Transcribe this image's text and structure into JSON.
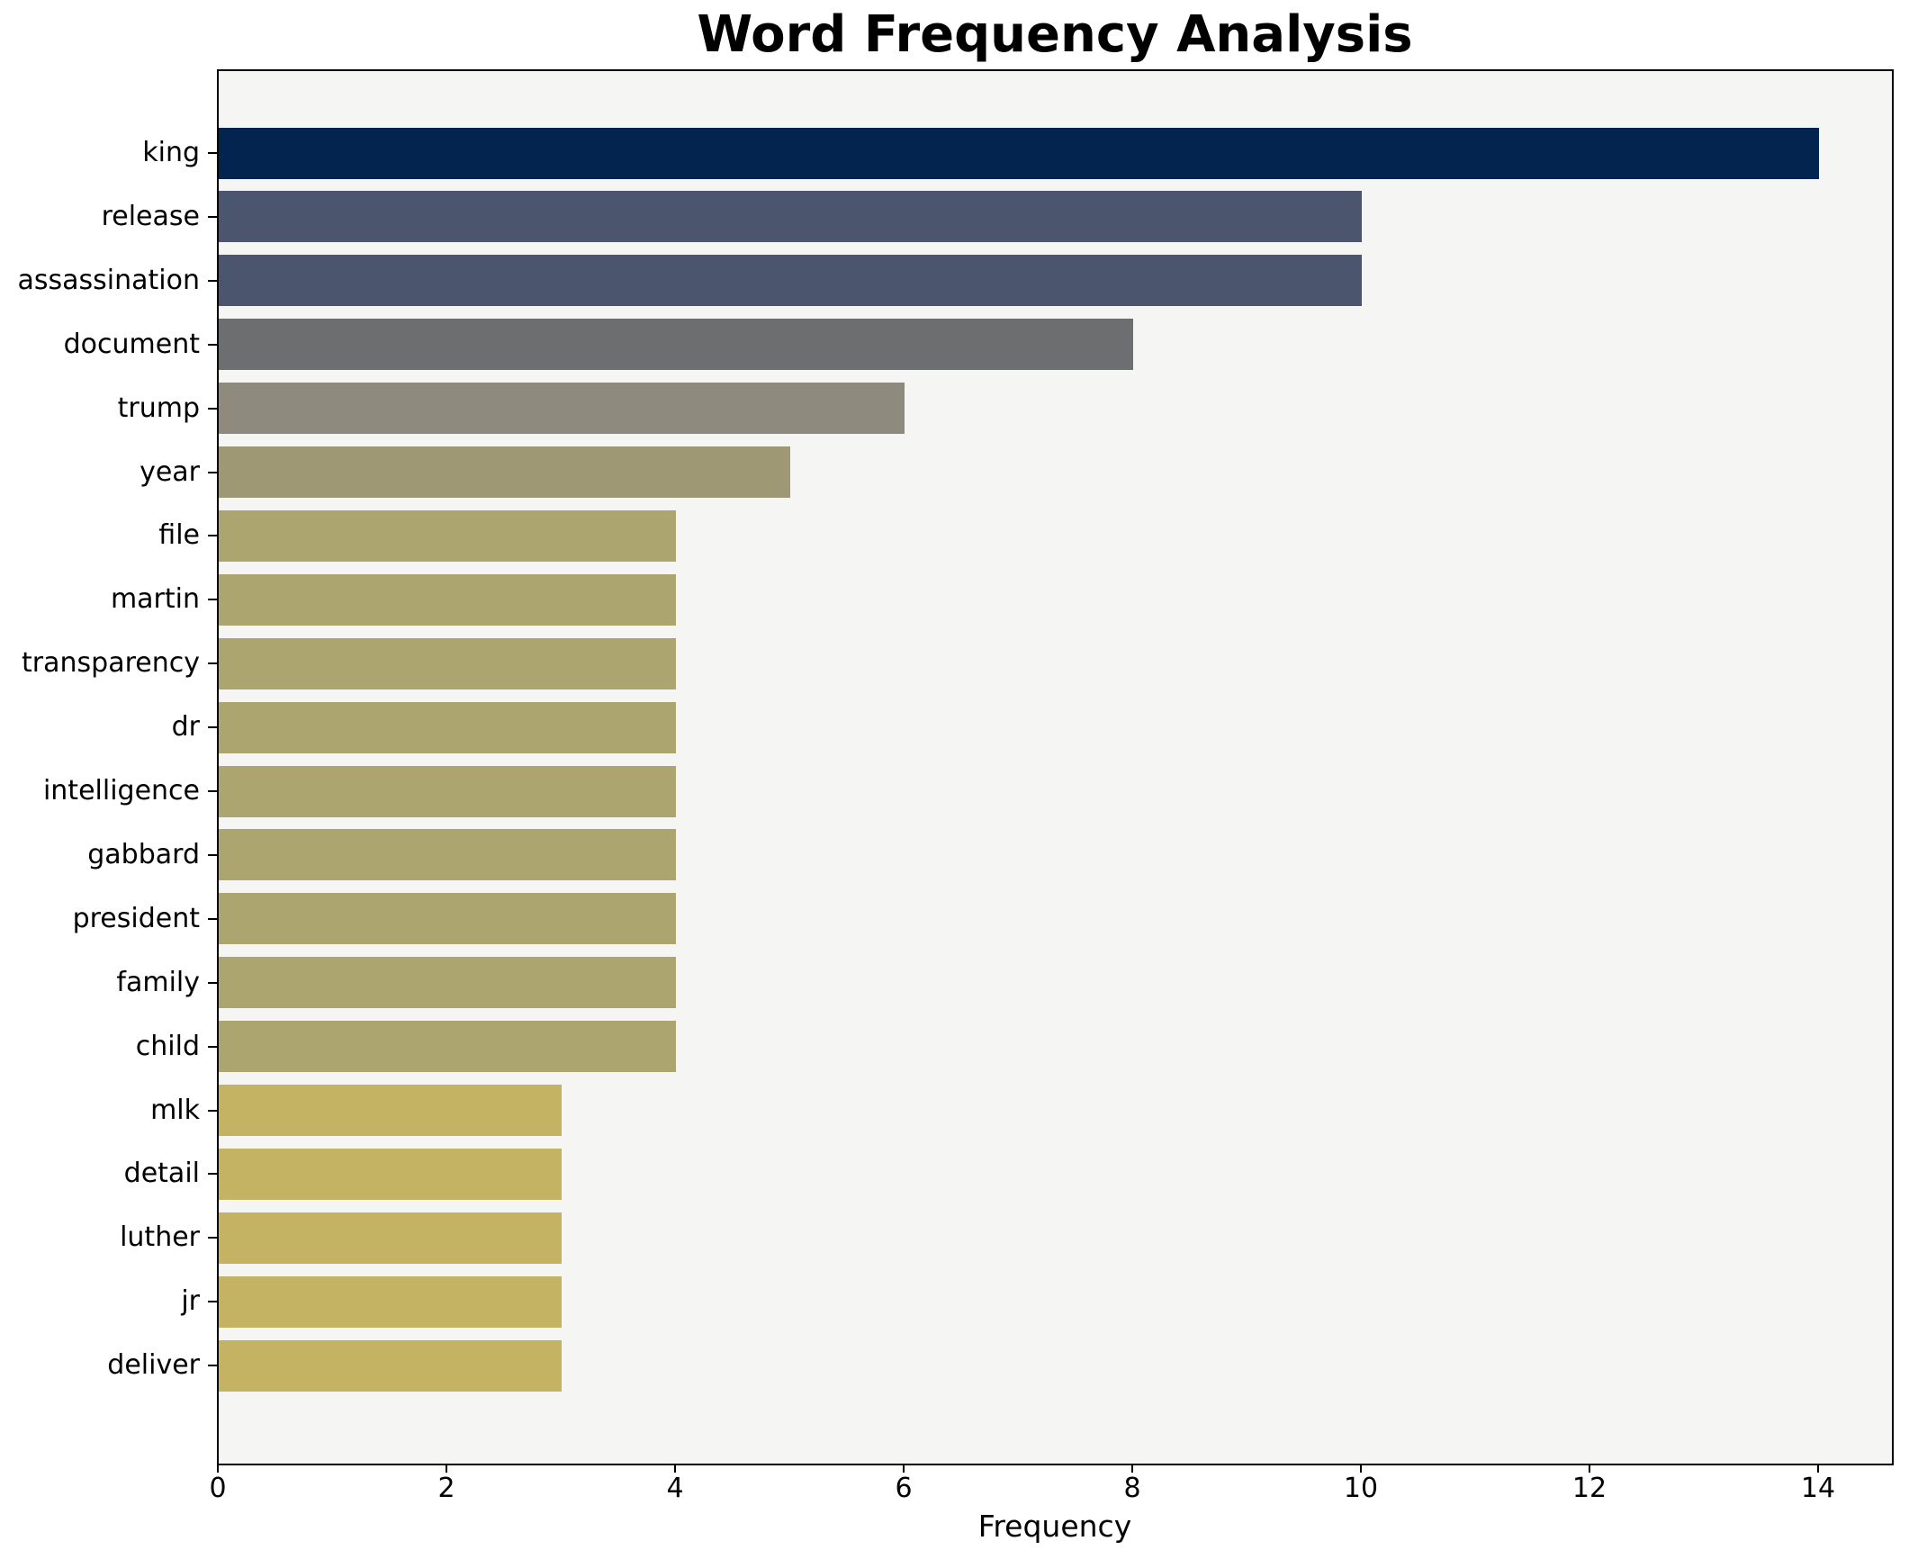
{
  "chart_data": {
    "type": "bar",
    "orientation": "horizontal",
    "title": "Word Frequency Analysis",
    "xlabel": "Frequency",
    "ylabel": "",
    "categories": [
      "king",
      "release",
      "assassination",
      "document",
      "trump",
      "year",
      "file",
      "martin",
      "transparency",
      "dr",
      "intelligence",
      "gabbard",
      "president",
      "family",
      "child",
      "mlk",
      "detail",
      "luther",
      "jr",
      "deliver"
    ],
    "values": [
      14,
      10,
      10,
      8,
      6,
      5,
      4,
      4,
      4,
      4,
      4,
      4,
      4,
      4,
      4,
      3,
      3,
      3,
      3,
      3
    ],
    "bar_colors": [
      "#03244f",
      "#4c556e",
      "#4c556e",
      "#6c6e70",
      "#8e8a7d",
      "#9e9974",
      "#ada56f",
      "#ada56f",
      "#ada56f",
      "#ada56f",
      "#ada56f",
      "#ada56f",
      "#ada56f",
      "#ada56f",
      "#ada56f",
      "#c3b363",
      "#c3b363",
      "#c3b363",
      "#c3b363",
      "#c3b363"
    ],
    "x_ticks": [
      0,
      2,
      4,
      6,
      8,
      10,
      12,
      14
    ],
    "xlim": [
      0,
      14.65
    ],
    "grid": false,
    "legend_position": "none",
    "colors": {
      "plot_background": "#f5f5f3",
      "figure_background": "#ffffff",
      "spine": "#000000",
      "text": "#000000"
    }
  }
}
